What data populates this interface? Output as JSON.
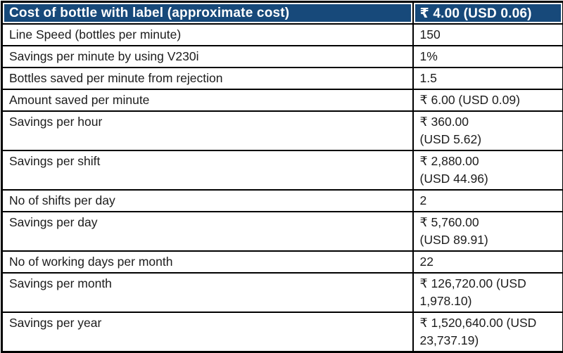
{
  "table": {
    "header": {
      "label": "Cost of bottle with label (approximate cost)",
      "value": "₹ 4.00 (USD 0.06)"
    },
    "rows": [
      {
        "label": "Line Speed (bottles per minute)",
        "value": "150"
      },
      {
        "label": "Savings per minute by using V230i",
        "value": "1%"
      },
      {
        "label": "Bottles saved per minute from rejection",
        "value": "1.5"
      },
      {
        "label": "Amount saved per minute",
        "value": "₹ 6.00 (USD 0.09)"
      },
      {
        "label": "Savings per hour",
        "value": "₹ 360.00\n(USD 5.62)"
      },
      {
        "label": "Savings per shift",
        "value": "₹ 2,880.00\n(USD 44.96)"
      },
      {
        "label": "No of shifts per day",
        "value": "2"
      },
      {
        "label": "Savings per day",
        "value": "₹ 5,760.00\n(USD 89.91)"
      },
      {
        "label": "No of working days per month",
        "value": "22"
      },
      {
        "label": "Savings per month",
        "value": "₹ 126,720.00 (USD\n1,978.10)"
      },
      {
        "label": "Savings per year",
        "value": "₹ 1,520,640.00 (USD\n23,737.19)"
      }
    ],
    "colors": {
      "header_bg": "#17497A",
      "header_text": "#FFFFFF",
      "border": "#000000",
      "body_text": "#1C1C1C"
    }
  }
}
